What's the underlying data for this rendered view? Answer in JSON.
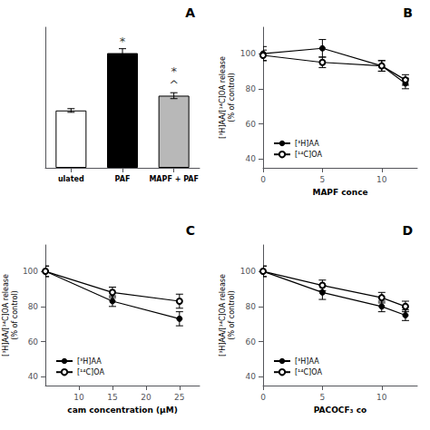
{
  "chart_data": [
    {
      "type": "bar",
      "title": "A",
      "categories": [
        "ulated",
        "PAF",
        "MAPF + PAF"
      ],
      "values": [
        155,
        310,
        195
      ],
      "errors": [
        5,
        12,
        8
      ],
      "colors": [
        "white",
        "black",
        "#b8b8b8"
      ],
      "edge_colors": [
        "black",
        "black",
        "black"
      ],
      "ylim": [
        0,
        380
      ],
      "tick_labels": "x",
      "grid": false,
      "annotations": [
        {
          "text": "*",
          "x": "PAF",
          "y": 326
        },
        {
          "text": "^",
          "x": "MAPF + PAF",
          "y": 208
        },
        {
          "text": "*",
          "x": "MAPF + PAF",
          "y": 218
        }
      ]
    },
    {
      "type": "line",
      "title": "B",
      "xlabel": "MAPF conce",
      "ylabel": "[³H]AA/[¹⁴C]OA release\n(% of control)",
      "x": [
        0,
        5,
        10,
        12
      ],
      "series": [
        {
          "name": "[³H]AA",
          "color": "black",
          "marker": "circle",
          "values": [
            100,
            103,
            93,
            83
          ],
          "errors": [
            4,
            5,
            3,
            3
          ]
        },
        {
          "name": "[¹⁴C]OA",
          "color": "black",
          "marker": "open_circle",
          "values": [
            99,
            95,
            93,
            85
          ],
          "errors": [
            3,
            3,
            3,
            3
          ]
        }
      ],
      "xlim": [
        0,
        13
      ],
      "ylim": [
        35,
        115
      ],
      "xticks": [
        0,
        5,
        10
      ],
      "yticks": [
        40,
        60,
        80,
        100
      ],
      "legend": "lower left",
      "grid": false
    },
    {
      "type": "line",
      "title": "C",
      "xlabel": "cam concentration (µM)",
      "ylabel": "[³H]AA/[¹⁴C]OA release\n(% of control)",
      "x": [
        5,
        15,
        25
      ],
      "series": [
        {
          "name": "[³H]AA",
          "color": "black",
          "marker": "circle",
          "values": [
            100,
            83,
            73
          ],
          "errors": [
            3,
            3,
            4
          ]
        },
        {
          "name": "[¹⁴C]OA",
          "color": "black",
          "marker": "open_circle",
          "values": [
            100,
            88,
            83
          ],
          "errors": [
            3,
            3,
            4
          ]
        }
      ],
      "xlim": [
        5,
        28
      ],
      "ylim": [
        35,
        115
      ],
      "xticks": [
        10,
        15,
        20,
        25
      ],
      "yticks": [
        40,
        60,
        80,
        100
      ],
      "legend": "lower left",
      "grid": false
    },
    {
      "type": "line",
      "title": "D",
      "xlabel": "PACOCF₃ co",
      "ylabel": "[³H]AA/[¹⁴C]OA release\n(% of control)",
      "x": [
        0,
        5,
        10,
        12
      ],
      "series": [
        {
          "name": "[³H]AA",
          "color": "black",
          "marker": "circle",
          "values": [
            100,
            88,
            80,
            75
          ],
          "errors": [
            3,
            4,
            3,
            3
          ]
        },
        {
          "name": "[¹⁴C]OA",
          "color": "black",
          "marker": "open_circle",
          "values": [
            100,
            92,
            85,
            80
          ],
          "errors": [
            3,
            3,
            3,
            3
          ]
        }
      ],
      "xlim": [
        0,
        13
      ],
      "ylim": [
        35,
        115
      ],
      "xticks": [
        0,
        5,
        10
      ],
      "yticks": [
        40,
        60,
        80,
        100
      ],
      "legend": "lower left",
      "grid": false
    }
  ]
}
